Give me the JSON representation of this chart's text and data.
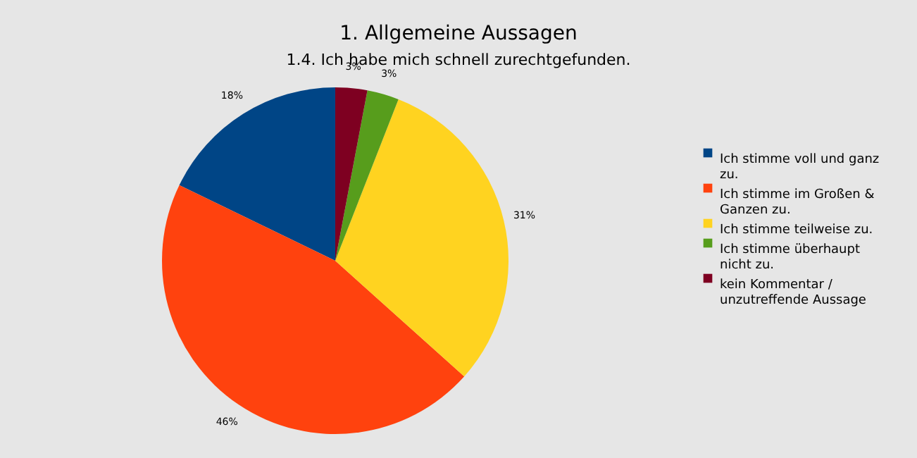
{
  "chart_data": {
    "type": "pie",
    "title": "1. Allgemeine Aussagen",
    "subtitle": "1.4. Ich habe mich schnell zurechtgefunden.",
    "categories": [
      "Ich stimme voll und ganz zu.",
      "Ich stimme im Großen & Ganzen zu.",
      "Ich stimme teilweise zu.",
      "Ich stimme überhaupt nicht zu.",
      "kein Kommentar / unzutreffende Aussage"
    ],
    "values": [
      18,
      46,
      31,
      3,
      3
    ],
    "colors": [
      "#004586",
      "#ff420e",
      "#ffd320",
      "#579d1c",
      "#7e0021"
    ],
    "value_labels": [
      "18%",
      "46%",
      "31%",
      "3%",
      "3%"
    ],
    "legend": "right"
  }
}
